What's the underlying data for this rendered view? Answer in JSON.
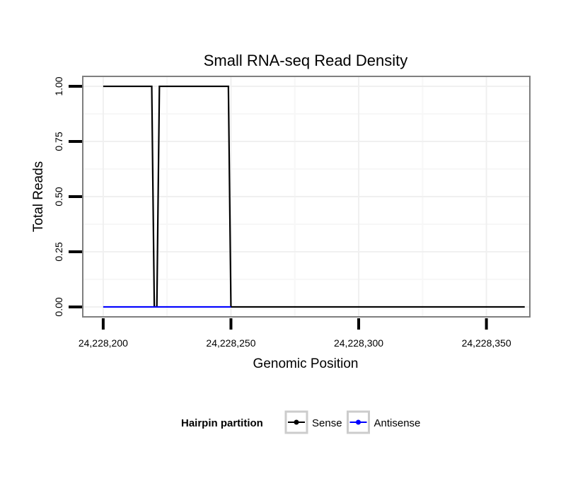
{
  "chart_data": {
    "type": "line",
    "title": "Small RNA-seq Read Density",
    "xlabel": "Genomic Position",
    "ylabel": "Total Reads",
    "xlim": [
      24228192,
      24228367
    ],
    "ylim": [
      -0.045,
      1.045
    ],
    "x_ticks": [
      24228200,
      24228250,
      24228300,
      24228350
    ],
    "x_tick_labels": [
      "24,228,200",
      "24,228,250",
      "24,228,300",
      "24,228,350"
    ],
    "y_ticks": [
      0.0,
      0.25,
      0.5,
      0.75,
      1.0
    ],
    "y_tick_labels": [
      "0.00",
      "0.25",
      "0.50",
      "0.75",
      "1.00"
    ],
    "grid": true,
    "legend": {
      "title": "Hairpin partition",
      "position": "bottom"
    },
    "series": [
      {
        "name": "Sense",
        "color": "#000000",
        "x": [
          24228200,
          24228219,
          24228220,
          24228221,
          24228222,
          24228249,
          24228250,
          24228365
        ],
        "y": [
          1,
          1,
          0,
          0,
          1,
          1,
          0,
          0
        ]
      },
      {
        "name": "Antisense",
        "color": "#0000ff",
        "x": [
          24228200,
          24228250
        ],
        "y": [
          0,
          0
        ]
      }
    ]
  }
}
